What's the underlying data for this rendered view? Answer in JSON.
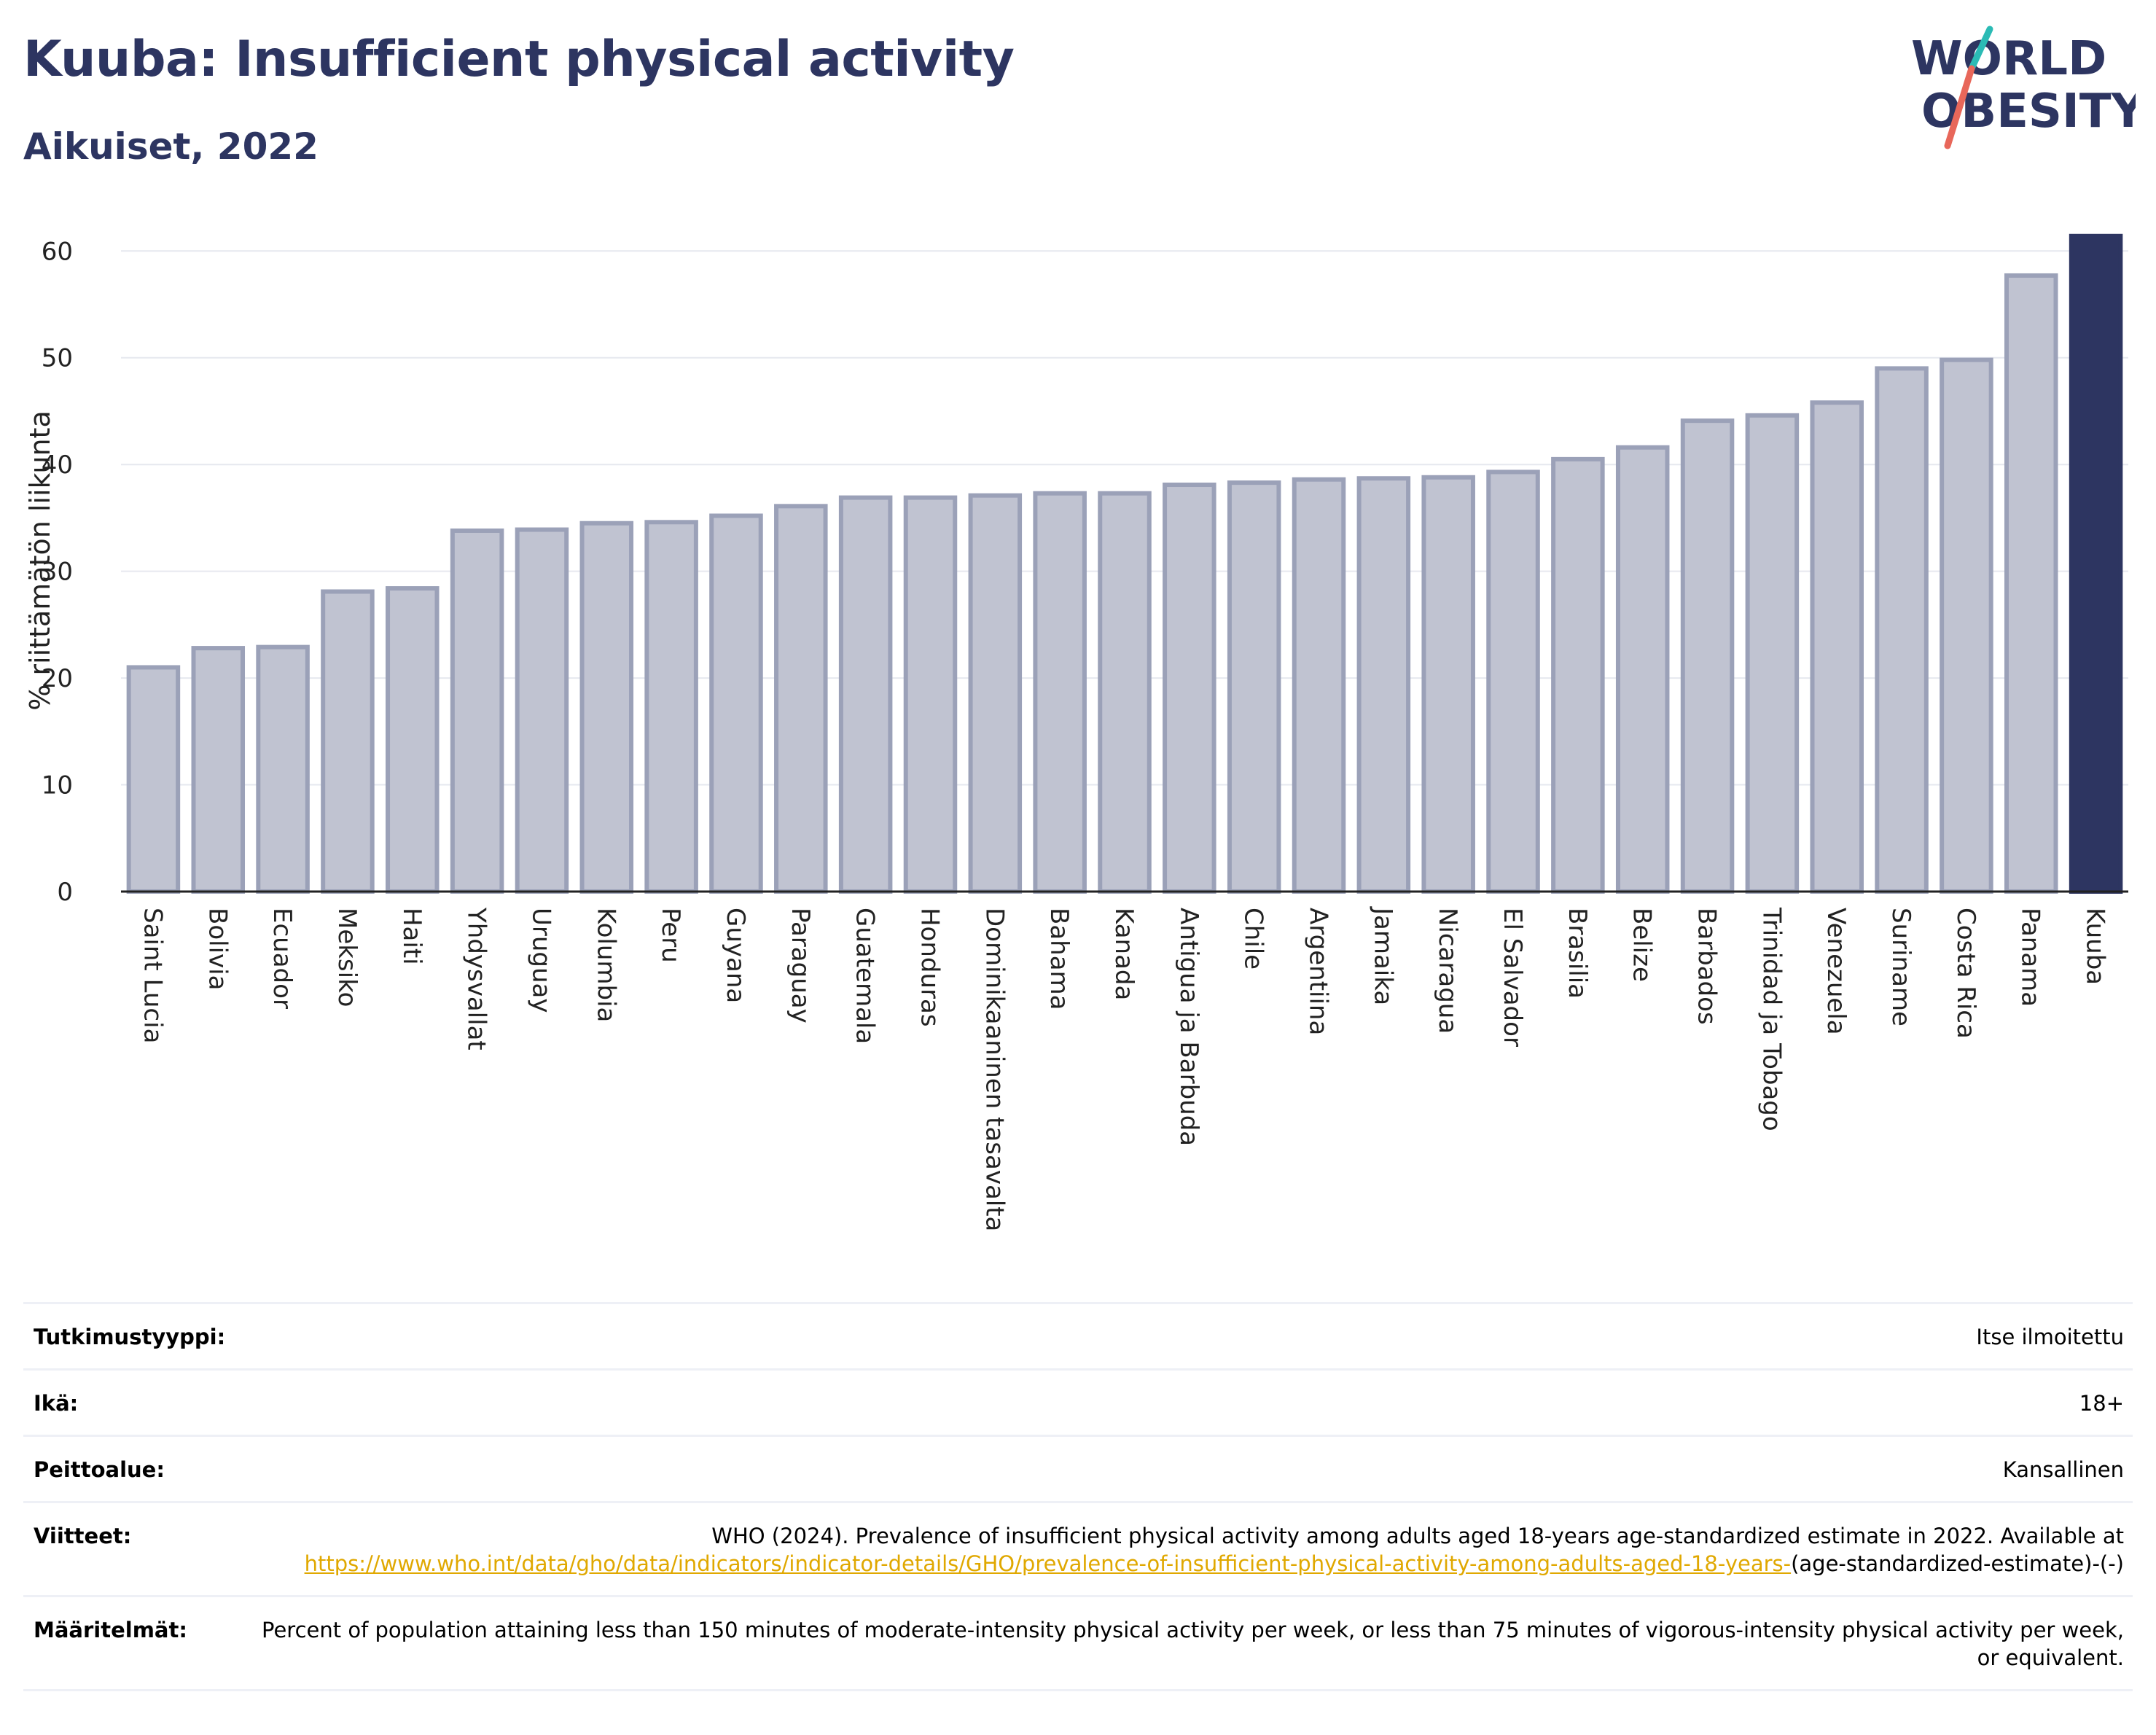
{
  "header": {
    "title": "Kuuba: Insufficient physical activity",
    "subtitle": "Aikuiset, 2022"
  },
  "logo": {
    "line1": "WORLD",
    "line2": "OBESITY",
    "text_color": "#2d3561",
    "slash_colors": [
      "#2bbbb5",
      "#e8675a"
    ]
  },
  "colors": {
    "bar": "#c0c3d1",
    "bar_edge": "#9ba1b8",
    "highlight": "#2d3561",
    "grid": "#e6e8ef",
    "axis": "#222222"
  },
  "chart_data": {
    "type": "bar",
    "title": "Kuuba: Insufficient physical activity",
    "subtitle": "Aikuiset, 2022",
    "xlabel": "",
    "ylabel": "% riittämätön liikunta",
    "ylim": [
      0,
      62
    ],
    "yticks": [
      0,
      10,
      20,
      30,
      40,
      50,
      60
    ],
    "grid": true,
    "highlight_category": "Kuuba",
    "categories": [
      "Saint Lucia",
      "Bolivia",
      "Ecuador",
      "Meksiko",
      "Haiti",
      "Yhdysvallat",
      "Uruguay",
      "Kolumbia",
      "Peru",
      "Guyana",
      "Paraguay",
      "Guatemala",
      "Honduras",
      "Dominikaaninen tasavalta",
      "Bahama",
      "Kanada",
      "Antigua ja Barbuda",
      "Chile",
      "Argentiina",
      "Jamaika",
      "Nicaragua",
      "El Salvador",
      "Brasilia",
      "Belize",
      "Barbados",
      "Trinidad ja Tobago",
      "Venezuela",
      "Suriname",
      "Costa Rica",
      "Panama",
      "Kuuba"
    ],
    "values": [
      21.0,
      22.8,
      22.9,
      28.1,
      28.4,
      33.8,
      33.9,
      34.5,
      34.6,
      35.2,
      36.1,
      36.9,
      36.9,
      37.1,
      37.3,
      37.3,
      38.1,
      38.3,
      38.6,
      38.7,
      38.8,
      39.3,
      40.5,
      41.6,
      44.1,
      44.6,
      45.8,
      49.0,
      49.8,
      57.7,
      61.4
    ]
  },
  "info": {
    "rows": [
      {
        "label": "Tutkimustyyppi:",
        "value": "Itse ilmoitettu"
      },
      {
        "label": "Ikä:",
        "value": "18+"
      },
      {
        "label": "Peittoalue:",
        "value": "Kansallinen"
      }
    ],
    "references": {
      "label": "Viitteet:",
      "text": "WHO (2024). Prevalence of insufficient physical activity among adults aged 18-years age-standardized estimate in 2022. Available at",
      "link": "https://www.who.int/data/gho/data/indicators/indicator-details/GHO/prevalence-of-insufficient-physical-activity-among-adults-aged-18-years-",
      "suffix": "(age-standardized-estimate)-(-)"
    },
    "definitions": {
      "label": "Määritelmät:",
      "value": "Percent of population attaining less than 150 minutes of moderate-intensity physical activity per week, or less than 75 minutes of vigorous-intensity physical activity per week, or equivalent."
    }
  }
}
